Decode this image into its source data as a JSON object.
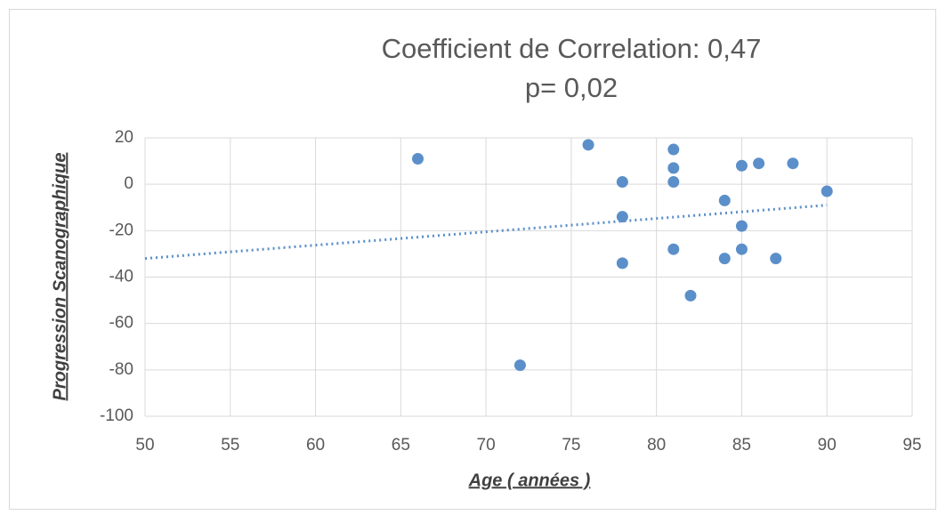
{
  "chart_data": {
    "type": "scatter",
    "title": "Coefficient de Correlation: 0,47",
    "subtitle": "p= 0,02",
    "x_label": "Age ( années )",
    "y_label": "Progression Scanographique",
    "series": [
      {
        "color": "#5b8fc9",
        "x": [
          66,
          76,
          72,
          78,
          78,
          78,
          81,
          81,
          81,
          81,
          82,
          84,
          84,
          85,
          85,
          85,
          86,
          88,
          87,
          90
        ],
        "values": [
          11,
          17,
          -78,
          1,
          -14,
          -34,
          15,
          7,
          1,
          -28,
          -48,
          -7,
          -32,
          8,
          -18,
          -28,
          9,
          9,
          -32,
          -3
        ]
      }
    ],
    "trendline": {
      "color": "#5b8fc9",
      "x": [
        50,
        90
      ],
      "values": [
        -32,
        -9
      ]
    },
    "xlim": [
      50,
      95
    ],
    "xticks": [
      50,
      55,
      60,
      65,
      70,
      75,
      80,
      85,
      90,
      95
    ],
    "ylim": [
      -100,
      20
    ],
    "yticks": [
      -100,
      -80,
      -60,
      -40,
      -20,
      0,
      20
    ],
    "grid": true
  }
}
